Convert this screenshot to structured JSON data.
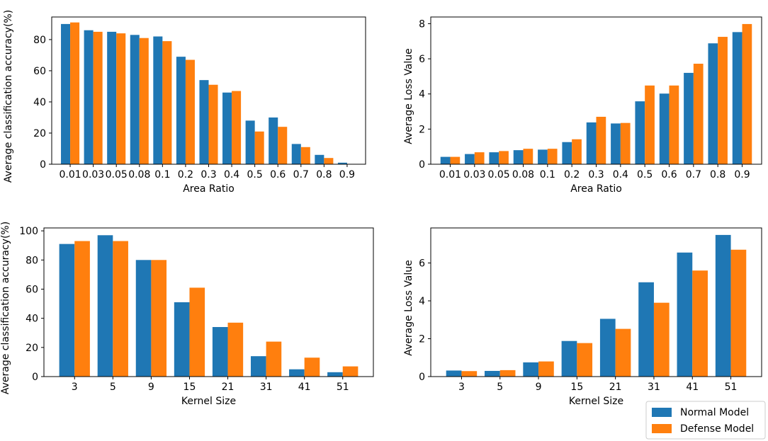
{
  "colors": {
    "normal": "#1f77b4",
    "defense": "#ff7f0e"
  },
  "legend": {
    "location": "lower-right",
    "entries": [
      "Normal Model",
      "Defense Model"
    ]
  },
  "chart_data": [
    {
      "type": "bar",
      "title": "",
      "xlabel": "Area Ratio",
      "ylabel": "Average classification accuracy(%)",
      "categories": [
        "0.01",
        "0.03",
        "0.05",
        "0.08",
        "0.1",
        "0.2",
        "0.3",
        "0.4",
        "0.5",
        "0.6",
        "0.7",
        "0.8",
        "0.9"
      ],
      "series": [
        {
          "name": "Normal Model",
          "values": [
            90,
            86,
            85,
            83,
            82,
            69,
            54,
            46,
            28,
            30,
            13,
            6,
            1
          ]
        },
        {
          "name": "Defense Model",
          "values": [
            91,
            85,
            84,
            81,
            79,
            67,
            51,
            47,
            21,
            24,
            11,
            4,
            0
          ]
        }
      ],
      "ylim": [
        0,
        94.5
      ],
      "yticks": [
        0,
        20,
        40,
        60,
        80
      ]
    },
    {
      "type": "bar",
      "title": "",
      "xlabel": "Area Ratio",
      "ylabel": "Average Loss Value",
      "categories": [
        "0.01",
        "0.03",
        "0.05",
        "0.08",
        "0.1",
        "0.2",
        "0.3",
        "0.4",
        "0.5",
        "0.6",
        "0.7",
        "0.8",
        "0.9"
      ],
      "series": [
        {
          "name": "Normal Model",
          "values": [
            0.42,
            0.58,
            0.68,
            0.8,
            0.83,
            1.26,
            2.38,
            2.32,
            3.58,
            4.02,
            5.2,
            6.88,
            7.52
          ]
        },
        {
          "name": "Defense Model",
          "values": [
            0.42,
            0.68,
            0.75,
            0.88,
            0.88,
            1.42,
            2.7,
            2.35,
            4.48,
            4.48,
            5.72,
            7.25,
            7.98
          ]
        }
      ],
      "ylim": [
        0,
        8.38
      ],
      "yticks": [
        0,
        2,
        4,
        6,
        8
      ]
    },
    {
      "type": "bar",
      "title": "",
      "xlabel": "Kernel Size",
      "ylabel": "Average classification accuracy(%)",
      "categories": [
        "3",
        "5",
        "9",
        "15",
        "21",
        "31",
        "41",
        "51"
      ],
      "series": [
        {
          "name": "Normal Model",
          "values": [
            91,
            97,
            80,
            51,
            34,
            14,
            5,
            3
          ]
        },
        {
          "name": "Defense Model",
          "values": [
            93,
            93,
            80,
            61,
            37,
            24,
            13,
            7
          ]
        }
      ],
      "ylim": [
        0,
        102
      ],
      "yticks": [
        0,
        20,
        40,
        60,
        80,
        100
      ]
    },
    {
      "type": "bar",
      "title": "",
      "xlabel": "Kernel Size",
      "ylabel": "Average Loss Value",
      "categories": [
        "3",
        "5",
        "9",
        "15",
        "21",
        "31",
        "41",
        "51"
      ],
      "series": [
        {
          "name": "Normal Model",
          "values": [
            0.32,
            0.3,
            0.75,
            1.88,
            3.05,
            4.98,
            6.55,
            7.48
          ]
        },
        {
          "name": "Defense Model",
          "values": [
            0.29,
            0.34,
            0.8,
            1.77,
            2.52,
            3.9,
            5.6,
            6.7
          ]
        }
      ],
      "ylim": [
        0,
        7.85
      ],
      "yticks": [
        0,
        2,
        4,
        6
      ]
    }
  ]
}
